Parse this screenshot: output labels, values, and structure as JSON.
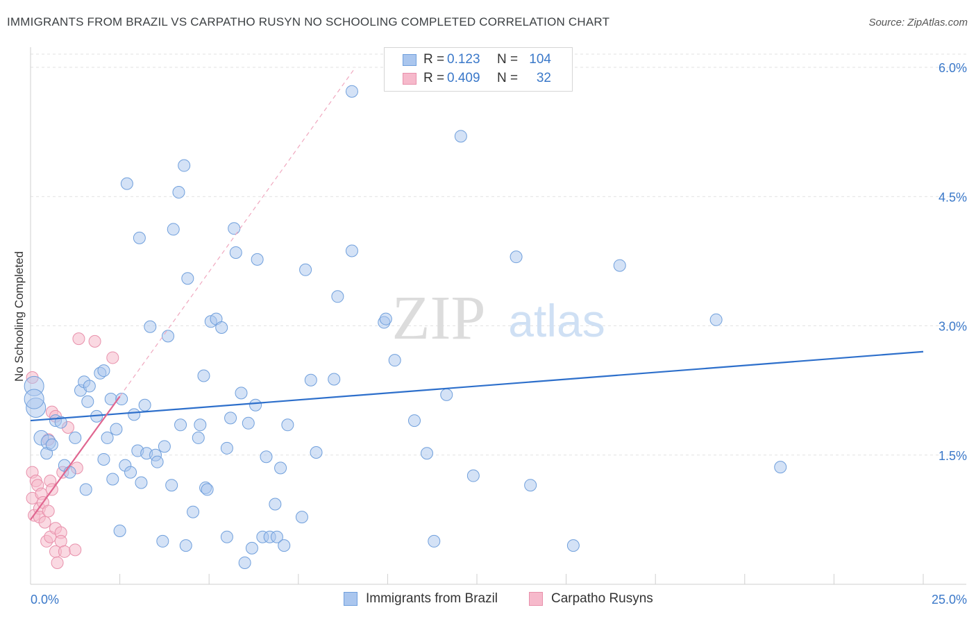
{
  "title": "IMMIGRANTS FROM BRAZIL VS CARPATHO RUSYN NO SCHOOLING COMPLETED CORRELATION CHART",
  "source": "Source: ZipAtlas.com",
  "watermark": {
    "zip": "ZIP",
    "atlas": "atlas"
  },
  "legend": {
    "rows": [
      {
        "r_label": "R =",
        "r_value": "0.123",
        "n_label": "N =",
        "n_value": "104"
      },
      {
        "r_label": "R =",
        "r_value": "0.409",
        "n_label": "N =",
        "n_value": "32"
      }
    ]
  },
  "chart_data": {
    "type": "scatter",
    "title": "IMMIGRANTS FROM BRAZIL VS CARPATHO RUSYN NO SCHOOLING COMPLETED CORRELATION CHART",
    "xlabel": "",
    "ylabel": "No Schooling Completed",
    "xlim": [
      0,
      25
    ],
    "ylim": [
      0,
      6.2
    ],
    "x_tick_labels": [
      "0.0%",
      "25.0%"
    ],
    "y_ticks": [
      1.5,
      3.0,
      4.5,
      6.0
    ],
    "y_tick_labels": [
      "1.5%",
      "3.0%",
      "4.5%",
      "6.0%"
    ],
    "grid": true,
    "legend_position": "top-center",
    "colors": {
      "brazil_fill": "#aac6ee",
      "brazil_stroke": "#6f9fdc",
      "brazil_line": "#2d6fcb",
      "rusyn_fill": "#f6b9cb",
      "rusyn_stroke": "#e890ab",
      "rusyn_line": "#e06690",
      "grid": "#e2e2e2",
      "tick_text": "#3a78c9"
    },
    "series": [
      {
        "name": "Immigrants from Brazil",
        "r": 0.123,
        "n": 104,
        "trend": {
          "x": [
            0,
            25
          ],
          "y": [
            1.9,
            2.7
          ]
        },
        "points": [
          {
            "x": 0.15,
            "y": 2.05,
            "s": "lg"
          },
          {
            "x": 0.1,
            "y": 2.3,
            "s": "lg"
          },
          {
            "x": 0.1,
            "y": 2.15,
            "s": "lg"
          },
          {
            "x": 0.3,
            "y": 1.7,
            "s": "md"
          },
          {
            "x": 0.5,
            "y": 1.65,
            "s": "md"
          },
          {
            "x": 0.45,
            "y": 1.52
          },
          {
            "x": 0.6,
            "y": 1.62
          },
          {
            "x": 0.7,
            "y": 1.9
          },
          {
            "x": 0.85,
            "y": 1.88
          },
          {
            "x": 0.95,
            "y": 1.38
          },
          {
            "x": 1.1,
            "y": 1.3
          },
          {
            "x": 1.25,
            "y": 1.7
          },
          {
            "x": 1.55,
            "y": 1.1
          },
          {
            "x": 1.4,
            "y": 2.25
          },
          {
            "x": 1.5,
            "y": 2.35
          },
          {
            "x": 1.6,
            "y": 2.12
          },
          {
            "x": 1.65,
            "y": 2.3
          },
          {
            "x": 1.85,
            "y": 1.95
          },
          {
            "x": 1.95,
            "y": 2.45
          },
          {
            "x": 2.05,
            "y": 2.48
          },
          {
            "x": 2.05,
            "y": 1.45
          },
          {
            "x": 2.15,
            "y": 1.7
          },
          {
            "x": 2.25,
            "y": 2.15
          },
          {
            "x": 2.3,
            "y": 1.22
          },
          {
            "x": 2.4,
            "y": 1.8
          },
          {
            "x": 2.5,
            "y": 0.62
          },
          {
            "x": 2.55,
            "y": 2.15
          },
          {
            "x": 2.65,
            "y": 1.38
          },
          {
            "x": 2.7,
            "y": 4.65
          },
          {
            "x": 2.8,
            "y": 1.3
          },
          {
            "x": 2.9,
            "y": 1.97
          },
          {
            "x": 3.0,
            "y": 1.55
          },
          {
            "x": 3.05,
            "y": 4.02
          },
          {
            "x": 3.1,
            "y": 1.18
          },
          {
            "x": 3.2,
            "y": 2.08
          },
          {
            "x": 3.25,
            "y": 1.52
          },
          {
            "x": 3.35,
            "y": 2.99
          },
          {
            "x": 3.5,
            "y": 1.5
          },
          {
            "x": 3.55,
            "y": 1.42
          },
          {
            "x": 3.7,
            "y": 0.5
          },
          {
            "x": 3.75,
            "y": 1.6
          },
          {
            "x": 3.85,
            "y": 2.88
          },
          {
            "x": 3.95,
            "y": 1.15
          },
          {
            "x": 4.0,
            "y": 4.12
          },
          {
            "x": 4.15,
            "y": 4.55
          },
          {
            "x": 4.2,
            "y": 1.85
          },
          {
            "x": 4.3,
            "y": 4.86
          },
          {
            "x": 4.35,
            "y": 0.45
          },
          {
            "x": 4.4,
            "y": 3.55
          },
          {
            "x": 4.55,
            "y": 0.84
          },
          {
            "x": 4.7,
            "y": 1.7
          },
          {
            "x": 4.75,
            "y": 1.85
          },
          {
            "x": 4.85,
            "y": 2.42
          },
          {
            "x": 4.9,
            "y": 1.12
          },
          {
            "x": 4.95,
            "y": 1.1
          },
          {
            "x": 5.05,
            "y": 3.05
          },
          {
            "x": 5.2,
            "y": 3.08
          },
          {
            "x": 5.35,
            "y": 2.98
          },
          {
            "x": 5.5,
            "y": 1.58
          },
          {
            "x": 5.5,
            "y": 0.55
          },
          {
            "x": 5.6,
            "y": 1.93
          },
          {
            "x": 5.7,
            "y": 4.13
          },
          {
            "x": 5.75,
            "y": 3.85
          },
          {
            "x": 5.9,
            "y": 2.22
          },
          {
            "x": 6.0,
            "y": 0.25
          },
          {
            "x": 6.1,
            "y": 1.87
          },
          {
            "x": 6.2,
            "y": 0.42
          },
          {
            "x": 6.3,
            "y": 2.08
          },
          {
            "x": 6.35,
            "y": 3.77
          },
          {
            "x": 6.5,
            "y": 0.55
          },
          {
            "x": 6.6,
            "y": 1.48
          },
          {
            "x": 6.7,
            "y": 0.55
          },
          {
            "x": 6.85,
            "y": 0.93
          },
          {
            "x": 6.9,
            "y": 0.55
          },
          {
            "x": 7.0,
            "y": 1.35
          },
          {
            "x": 7.1,
            "y": 0.45
          },
          {
            "x": 7.2,
            "y": 1.85
          },
          {
            "x": 7.6,
            "y": 0.78
          },
          {
            "x": 7.7,
            "y": 3.65
          },
          {
            "x": 7.85,
            "y": 2.37
          },
          {
            "x": 8.0,
            "y": 1.53
          },
          {
            "x": 8.5,
            "y": 2.38
          },
          {
            "x": 8.6,
            "y": 3.34
          },
          {
            "x": 9.0,
            "y": 5.72
          },
          {
            "x": 9.0,
            "y": 3.87
          },
          {
            "x": 9.9,
            "y": 3.04
          },
          {
            "x": 9.95,
            "y": 3.08
          },
          {
            "x": 10.2,
            "y": 2.6
          },
          {
            "x": 10.75,
            "y": 1.9
          },
          {
            "x": 11.1,
            "y": 1.52
          },
          {
            "x": 11.3,
            "y": 0.5
          },
          {
            "x": 11.65,
            "y": 2.2
          },
          {
            "x": 12.05,
            "y": 5.2
          },
          {
            "x": 12.4,
            "y": 1.26
          },
          {
            "x": 13.6,
            "y": 3.8
          },
          {
            "x": 14.0,
            "y": 1.15
          },
          {
            "x": 15.2,
            "y": 0.45
          },
          {
            "x": 16.5,
            "y": 3.7
          },
          {
            "x": 19.2,
            "y": 3.07
          },
          {
            "x": 21.0,
            "y": 1.36
          }
        ]
      },
      {
        "name": "Carpatho Rusyns",
        "r": 0.409,
        "n": 32,
        "trend": {
          "x": [
            0,
            2.5
          ],
          "y": [
            0.75,
            2.18
          ]
        },
        "trend_extension": {
          "x": [
            2.5,
            9.1
          ],
          "y": [
            2.18,
            6.0
          ]
        },
        "points": [
          {
            "x": 0.05,
            "y": 2.4
          },
          {
            "x": 0.05,
            "y": 1.3
          },
          {
            "x": 0.05,
            "y": 1.0
          },
          {
            "x": 0.1,
            "y": 0.8
          },
          {
            "x": 0.15,
            "y": 1.2
          },
          {
            "x": 0.2,
            "y": 1.15
          },
          {
            "x": 0.25,
            "y": 0.88
          },
          {
            "x": 0.25,
            "y": 0.78
          },
          {
            "x": 0.3,
            "y": 1.05
          },
          {
            "x": 0.35,
            "y": 0.95
          },
          {
            "x": 0.4,
            "y": 0.72
          },
          {
            "x": 0.45,
            "y": 0.5
          },
          {
            "x": 0.5,
            "y": 1.68
          },
          {
            "x": 0.55,
            "y": 1.2
          },
          {
            "x": 0.5,
            "y": 0.85
          },
          {
            "x": 0.55,
            "y": 0.55
          },
          {
            "x": 0.6,
            "y": 1.1
          },
          {
            "x": 0.6,
            "y": 2.0
          },
          {
            "x": 0.7,
            "y": 1.95
          },
          {
            "x": 0.7,
            "y": 0.65
          },
          {
            "x": 0.7,
            "y": 0.38
          },
          {
            "x": 0.75,
            "y": 0.25
          },
          {
            "x": 0.85,
            "y": 0.6
          },
          {
            "x": 0.85,
            "y": 0.5
          },
          {
            "x": 0.9,
            "y": 1.3
          },
          {
            "x": 0.95,
            "y": 0.38
          },
          {
            "x": 1.05,
            "y": 1.82
          },
          {
            "x": 1.25,
            "y": 0.4
          },
          {
            "x": 1.3,
            "y": 1.35
          },
          {
            "x": 1.35,
            "y": 2.85
          },
          {
            "x": 1.8,
            "y": 2.82
          },
          {
            "x": 2.3,
            "y": 2.63
          }
        ]
      }
    ]
  },
  "bottom_legend": [
    {
      "label": "Immigrants from Brazil"
    },
    {
      "label": "Carpatho Rusyns"
    }
  ]
}
